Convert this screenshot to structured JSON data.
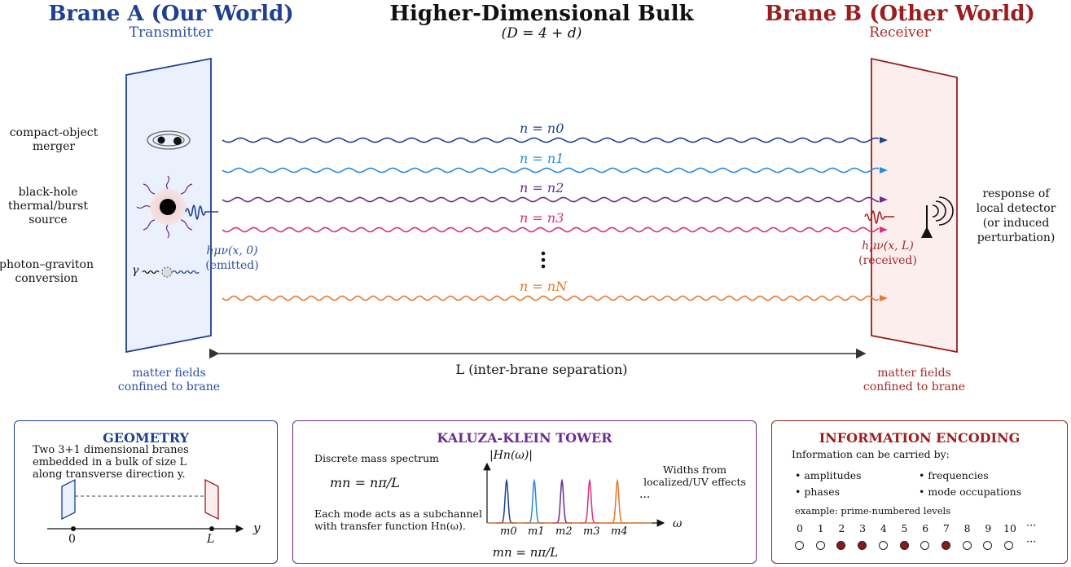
{
  "header": {
    "brane_a_title": "Brane A (Our World)",
    "brane_a_sub": "Transmitter",
    "bulk_title": "Higher-Dimensional Bulk",
    "bulk_sub": "(D = 4 + d)",
    "brane_b_title": "Brane B (Other World)",
    "brane_b_sub": "Receiver"
  },
  "sources": [
    {
      "line1": "compact-object",
      "line2": "merger",
      "line3": ""
    },
    {
      "line1": "black-hole",
      "line2": "thermal/burst",
      "line3": "source"
    },
    {
      "line1": "photon–graviton",
      "line2": "conversion",
      "line3": ""
    }
  ],
  "emitted": {
    "symbol": "hμν(x, 0)",
    "label": "(emitted)",
    "gamma": "γ"
  },
  "received": {
    "symbol": "hμν(x, L)",
    "label": "(received)"
  },
  "detector_label": {
    "line1": "response of",
    "line2": "local detector",
    "line3": "(or induced",
    "line4": "perturbation)"
  },
  "modes": [
    {
      "label": "n = n0",
      "color": "#1f3f91"
    },
    {
      "label": "n = n1",
      "color": "#2a8ad8"
    },
    {
      "label": "n = n2",
      "color": "#6a2c91"
    },
    {
      "label": "n = n3",
      "color": "#d6317e"
    },
    {
      "label": "n = nN",
      "color": "#e8782b"
    }
  ],
  "separation": {
    "label": "L  (inter-brane separation)"
  },
  "confined_a": {
    "line1": "matter fields",
    "line2": "confined to brane"
  },
  "confined_b": {
    "line1": "matter fields",
    "line2": "confined to brane"
  },
  "geometry": {
    "title": "GEOMETRY",
    "line1": "Two 3+1 dimensional branes",
    "line2": "embedded in a bulk of size L",
    "line3": "along transverse direction y.",
    "axis_zero": "0",
    "axis_L": "L",
    "axis_y": "y"
  },
  "kk": {
    "title": "KALUZA-KLEIN TOWER",
    "spectrum_label": "Discrete mass spectrum",
    "formula": "mn = nπ/L",
    "mode_line1": "Each mode acts as a subchannel",
    "mode_line2": "with transfer function Hn(ω).",
    "plot_ylabel": "|Hn(ω)|",
    "plot_xlabel": "ω",
    "widths_line1": "Widths from",
    "widths_line2": "localized/UV effects",
    "ellipsis": "...",
    "bottom_formula": "mn = nπ/L",
    "mass_labels": [
      "m0",
      "m1",
      "m2",
      "m3",
      "m4"
    ],
    "peak_colors": [
      "#1f3f91",
      "#2a8ad8",
      "#6a2c91",
      "#d6317e",
      "#e8782b"
    ]
  },
  "info": {
    "title": "INFORMATION ENCODING",
    "intro": "Information can be carried by:",
    "bullets": [
      "• amplitudes",
      "• frequencies",
      "• phases",
      "• mode occupations"
    ],
    "example": "example: prime-numbered levels",
    "levels": [
      "0",
      "1",
      "2",
      "3",
      "4",
      "5",
      "6",
      "7",
      "8",
      "9",
      "10"
    ],
    "filled": [
      false,
      false,
      true,
      true,
      false,
      true,
      false,
      true,
      false,
      false,
      false
    ],
    "ellipsis": "···"
  },
  "colors": {
    "brane_a": "#1f3f91",
    "brane_b": "#9b1d1d",
    "kk": "#6a2c91"
  }
}
